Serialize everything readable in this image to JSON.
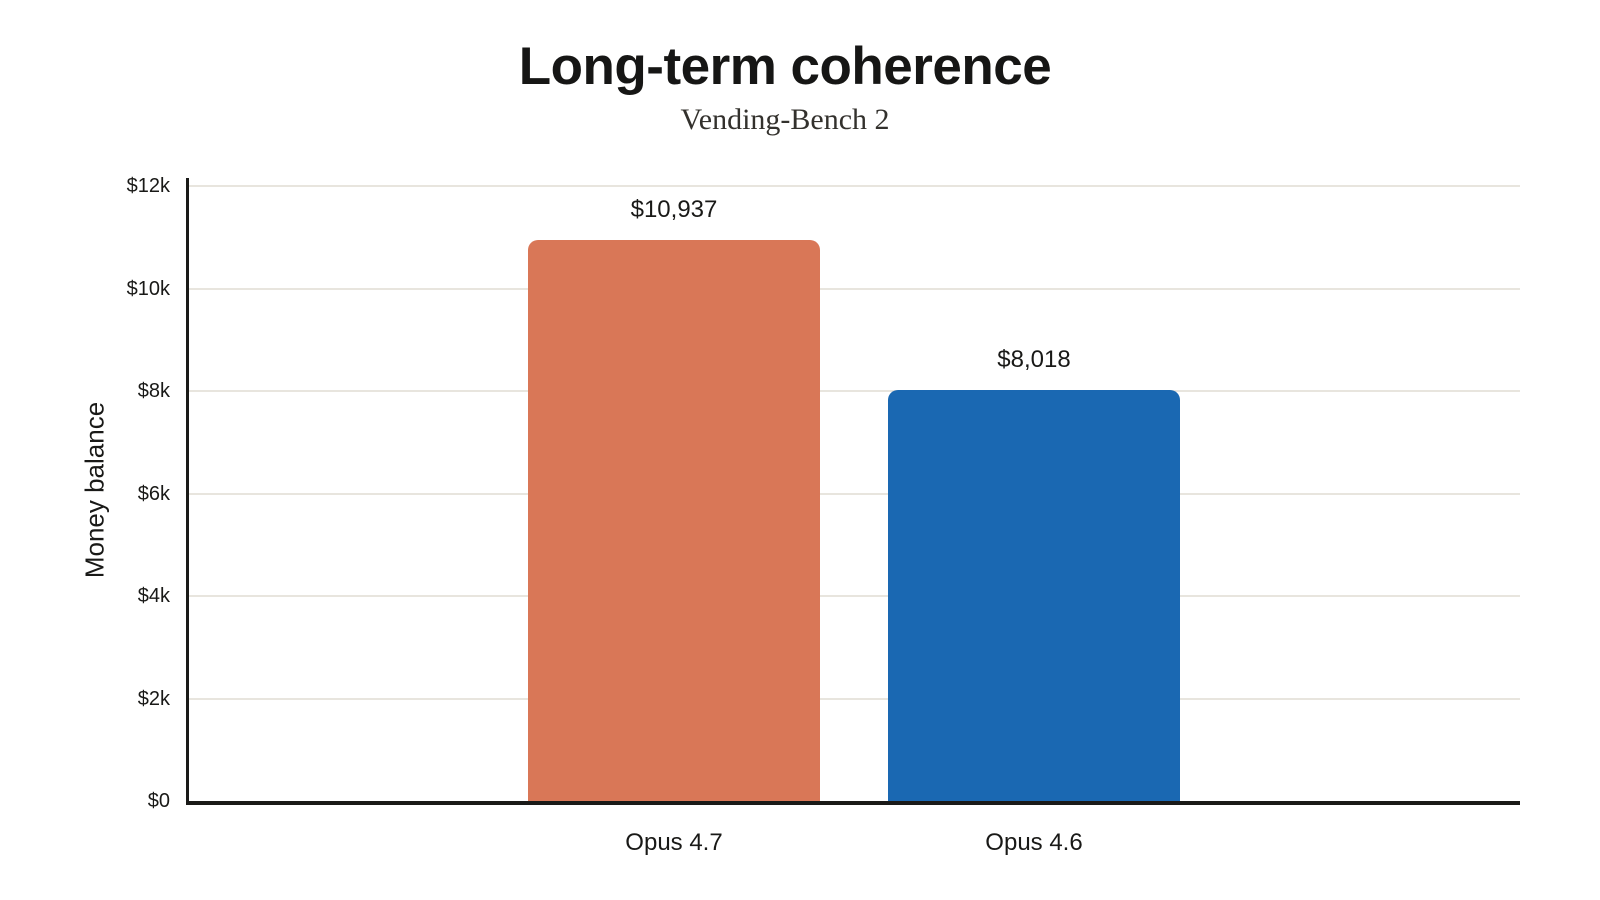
{
  "chart_data": {
    "type": "bar",
    "title": "Long-term coherence",
    "subtitle": "Vending-Bench 2",
    "xlabel": "",
    "ylabel": "Money balance",
    "categories": [
      "Opus 4.7",
      "Opus 4.6"
    ],
    "values": [
      10937,
      8018
    ],
    "value_labels": [
      "$10,937",
      "$8,018"
    ],
    "bar_colors": [
      "#D97757",
      "#1A68B2"
    ],
    "ylim": [
      0,
      12000
    ],
    "yticks": [
      0,
      2000,
      4000,
      6000,
      8000,
      10000,
      12000
    ],
    "ytick_labels": [
      "$0",
      "$2k",
      "$4k",
      "$6k",
      "$8k",
      "$10k",
      "$12k"
    ],
    "grid": "horizontal-only",
    "legend": "none"
  },
  "style": {
    "background": "#ffffff",
    "axis_color": "#1a1a18",
    "grid_color": "#e8e5de",
    "text_color": "#191917"
  }
}
